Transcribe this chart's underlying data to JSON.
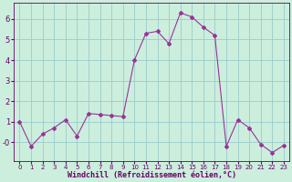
{
  "x": [
    0,
    1,
    2,
    3,
    4,
    5,
    6,
    7,
    8,
    9,
    10,
    11,
    12,
    13,
    14,
    15,
    16,
    17,
    18,
    19,
    20,
    21,
    22,
    23
  ],
  "y": [
    1.0,
    -0.2,
    0.4,
    0.7,
    1.1,
    0.3,
    1.4,
    1.35,
    1.3,
    1.25,
    4.0,
    5.3,
    5.4,
    4.8,
    6.3,
    6.1,
    5.6,
    5.2,
    -0.2,
    1.1,
    0.7,
    -0.1,
    -0.5,
    -0.15
  ],
  "line_color": "#993399",
  "marker": "D",
  "markersize": 2.0,
  "linewidth": 0.8,
  "bg_color": "#cceedd",
  "grid_color": "#99cccc",
  "xlabel": "Windchill (Refroidissement éolien,°C)",
  "xlabel_color": "#660066",
  "tick_color": "#660066",
  "xlim": [
    -0.5,
    23.5
  ],
  "ylim": [
    -0.9,
    6.8
  ],
  "yticks": [
    0,
    1,
    2,
    3,
    4,
    5,
    6
  ],
  "ytick_labels": [
    "-0",
    "1",
    "2",
    "3",
    "4",
    "5",
    "6"
  ],
  "xticks": [
    0,
    1,
    2,
    3,
    4,
    5,
    6,
    7,
    8,
    9,
    10,
    11,
    12,
    13,
    14,
    15,
    16,
    17,
    18,
    19,
    20,
    21,
    22,
    23
  ]
}
